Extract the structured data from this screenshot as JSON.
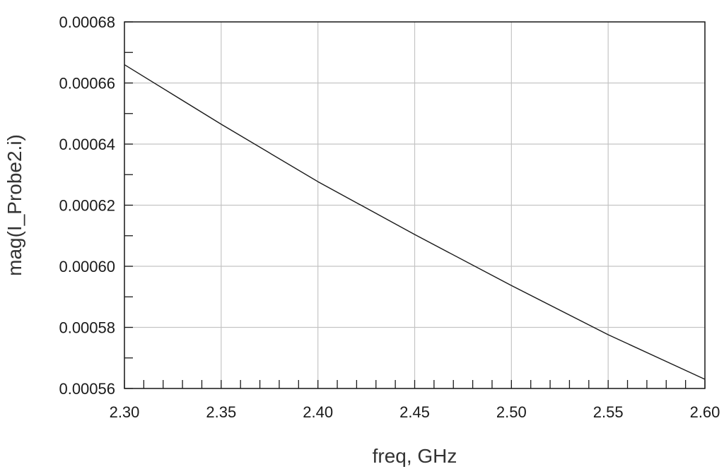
{
  "chart_data": {
    "type": "line",
    "title": "",
    "xlabel": "freq, GHz",
    "ylabel": "mag(I_Probe2.i)",
    "xlim": [
      2.3,
      2.6
    ],
    "ylim": [
      0.00056,
      0.00068
    ],
    "x_ticks": [
      "2.30",
      "2.35",
      "2.40",
      "2.45",
      "2.50",
      "2.55",
      "2.60"
    ],
    "y_ticks": [
      "0.00056",
      "0.00058",
      "0.00060",
      "0.00062",
      "0.00064",
      "0.00066",
      "0.00068"
    ],
    "grid": true,
    "series": [
      {
        "x": [
          2.3,
          2.35,
          2.4,
          2.45,
          2.5,
          2.55,
          2.6
        ],
        "y": [
          0.000666,
          0.0006465,
          0.0006277,
          0.0006104,
          0.0005937,
          0.0005776,
          0.000563
        ],
        "color": "#1a1a1a"
      }
    ]
  }
}
